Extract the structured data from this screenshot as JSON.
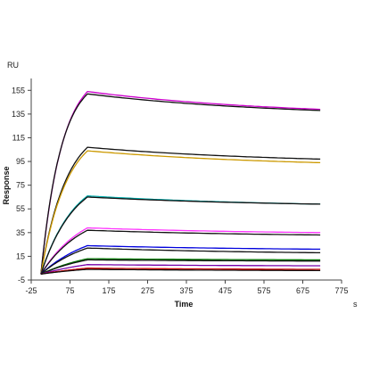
{
  "chart_data": {
    "type": "line",
    "title": "",
    "xlabel": "Time",
    "ylabel": "Response",
    "x_unit": "s",
    "y_unit": "RU",
    "xlim": [
      -25,
      775
    ],
    "ylim": [
      -5,
      165
    ],
    "x_ticks": [
      -25,
      75,
      175,
      275,
      375,
      475,
      575,
      675,
      775
    ],
    "y_ticks": [
      -5,
      15,
      35,
      55,
      75,
      95,
      115,
      135,
      155
    ],
    "grid": false,
    "legend": "none",
    "association_start": 0,
    "association_end": 120,
    "dissociation_end": 720,
    "series": [
      {
        "color": "#cc00cc",
        "plateau": 154,
        "end": 139,
        "curvature": 2.2
      },
      {
        "color": "#111111",
        "plateau": 152,
        "end": 138,
        "curvature": 2.3
      },
      {
        "color": "#111111",
        "plateau": 107,
        "end": 97,
        "curvature": 1.8
      },
      {
        "color": "#cc9900",
        "plateau": 104,
        "end": 94,
        "curvature": 1.8
      },
      {
        "color": "#00aaaa",
        "plateau": 66,
        "end": 59,
        "curvature": 1.4
      },
      {
        "color": "#111111",
        "plateau": 65,
        "end": 59,
        "curvature": 1.4
      },
      {
        "color": "#ff33ff",
        "plateau": 39,
        "end": 35,
        "curvature": 1.1
      },
      {
        "color": "#111111",
        "plateau": 37,
        "end": 33,
        "curvature": 1.1
      },
      {
        "color": "#0000dd",
        "plateau": 24,
        "end": 21,
        "curvature": 0.9
      },
      {
        "color": "#111111",
        "plateau": 22,
        "end": 18,
        "curvature": 0.9
      },
      {
        "color": "#007700",
        "plateau": 13,
        "end": 12,
        "curvature": 0.8
      },
      {
        "color": "#111111",
        "plateau": 12,
        "end": 11,
        "curvature": 0.8
      },
      {
        "color": "#7700aa",
        "plateau": 8,
        "end": 7,
        "curvature": 0.7
      },
      {
        "color": "#cc0000",
        "plateau": 5,
        "end": 4,
        "curvature": 0.7
      },
      {
        "color": "#111111",
        "plateau": 4,
        "end": 3,
        "curvature": 0.7
      }
    ]
  }
}
